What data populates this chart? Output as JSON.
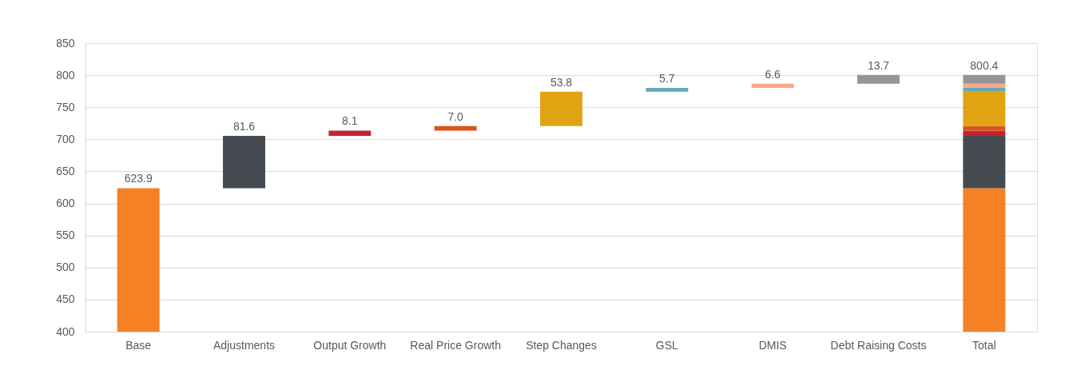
{
  "chart_data": {
    "type": "bar",
    "stacked": true,
    "categories": [
      "Base",
      "Adjustments",
      "Output Growth",
      "Real Price Growth",
      "Step Changes",
      "GSL",
      "DMIS",
      "Debt Raising Costs",
      "Total"
    ],
    "series": [
      {
        "color": "#f58025",
        "values": [
          623.9,
          null,
          null,
          null,
          null,
          null,
          null,
          null,
          623.9
        ],
        "value_labels": [
          "623.9",
          null,
          null,
          null,
          null,
          null,
          null,
          null,
          null
        ]
      },
      {
        "color": "#454950",
        "values": [
          null,
          81.6,
          null,
          null,
          null,
          null,
          null,
          null,
          81.6
        ],
        "base": [
          null,
          623.9,
          null,
          null,
          null,
          null,
          null,
          null,
          null
        ],
        "value_labels": [
          null,
          "81.6",
          null,
          null,
          null,
          null,
          null,
          null,
          null
        ]
      },
      {
        "color": "#c4222f",
        "values": [
          null,
          null,
          8.1,
          null,
          null,
          null,
          null,
          null,
          8.1
        ],
        "base": [
          null,
          null,
          705.5,
          null,
          null,
          null,
          null,
          null,
          null
        ],
        "value_labels": [
          null,
          null,
          "8.1",
          null,
          null,
          null,
          null,
          null,
          null
        ]
      },
      {
        "color": "#d9531e",
        "values": [
          null,
          null,
          null,
          7.0,
          null,
          null,
          null,
          null,
          7.0
        ],
        "base": [
          null,
          null,
          null,
          713.6,
          null,
          null,
          null,
          null,
          null
        ],
        "value_labels": [
          null,
          null,
          null,
          "7.0",
          null,
          null,
          null,
          null,
          null
        ]
      },
      {
        "color": "#e0a312",
        "values": [
          null,
          null,
          null,
          null,
          53.8,
          null,
          null,
          null,
          53.8
        ],
        "base": [
          null,
          null,
          null,
          null,
          720.6,
          null,
          null,
          null,
          null
        ],
        "value_labels": [
          null,
          null,
          null,
          null,
          "53.8",
          null,
          null,
          null,
          null
        ]
      },
      {
        "color": "#62a8b8",
        "values": [
          null,
          null,
          null,
          null,
          null,
          5.7,
          null,
          null,
          5.7
        ],
        "base": [
          null,
          null,
          null,
          null,
          null,
          774.4,
          null,
          null,
          null
        ],
        "value_labels": [
          null,
          null,
          null,
          null,
          null,
          "5.7",
          null,
          null,
          null
        ]
      },
      {
        "color": "#f9a98a",
        "values": [
          null,
          null,
          null,
          null,
          null,
          null,
          6.6,
          null,
          6.6
        ],
        "base": [
          null,
          null,
          null,
          null,
          null,
          null,
          780.1,
          null,
          null
        ],
        "value_labels": [
          null,
          null,
          null,
          null,
          null,
          null,
          "6.6",
          null,
          null
        ]
      },
      {
        "color": "#939598",
        "values": [
          null,
          null,
          null,
          null,
          null,
          null,
          null,
          13.7,
          13.7
        ],
        "base": [
          null,
          null,
          null,
          null,
          null,
          null,
          null,
          786.7,
          null
        ],
        "value_labels": [
          null,
          null,
          null,
          null,
          null,
          null,
          null,
          "13.7",
          null
        ]
      }
    ],
    "totals": [
      null,
      null,
      null,
      null,
      null,
      null,
      null,
      null,
      "800.4"
    ],
    "ylim": [
      400,
      850
    ],
    "yticks": [
      400,
      450,
      500,
      550,
      600,
      650,
      700,
      750,
      800,
      850
    ],
    "grid": "y",
    "legend": false
  }
}
